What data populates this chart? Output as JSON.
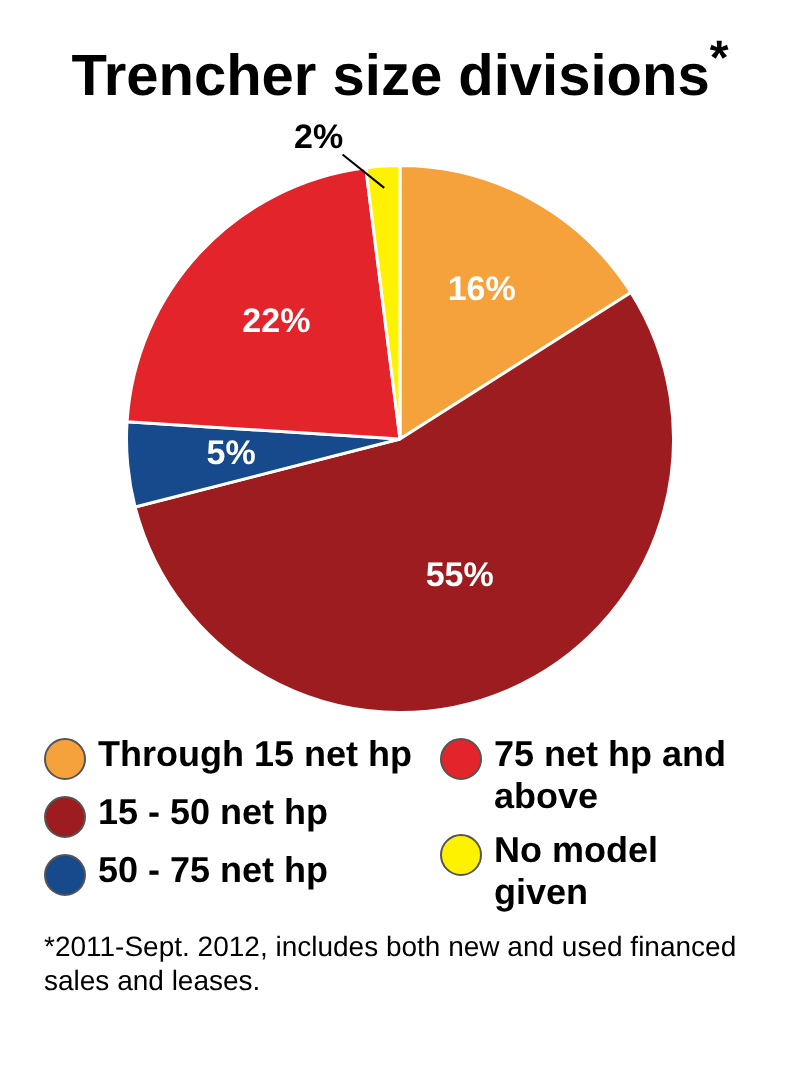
{
  "chart_data": {
    "type": "pie",
    "title": "Trencher size divisions$^{*}$",
    "categories": [
      "Through 15 net hp",
      "15 - 50 net hp",
      "50 - 75 net hp",
      "75 net hp and above",
      "No model given"
    ],
    "values": [
      16,
      55,
      5,
      22,
      2
    ],
    "colors": [
      "#f6a23c",
      "#9c1c20",
      "#164a8c",
      "#e3242b",
      "#fff200"
    ],
    "value_labels": [
      "16%",
      "55%",
      "5%",
      "22%",
      "2%"
    ],
    "legend": "bottom",
    "annotations": [
      "*2011-Sept. 2012, includes both new and used financed sales and leases."
    ]
  }
}
